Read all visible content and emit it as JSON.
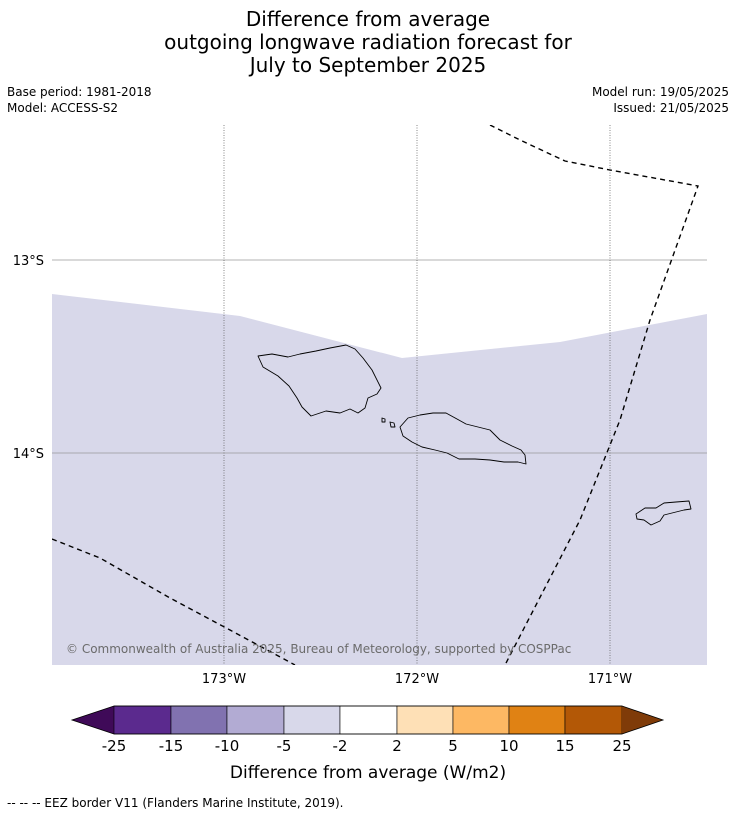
{
  "title": {
    "line1": "Difference from average",
    "line2": "outgoing longwave radiation forecast for",
    "line3": "July to September 2025"
  },
  "meta": {
    "base_period": "Base period: 1981-2018",
    "model": "Model: ACCESS-S2",
    "model_run": "Model run: 19/05/2025",
    "issued": "Issued: 21/05/2025"
  },
  "map": {
    "lon_ticks": [
      "173°W",
      "172°W",
      "171°W"
    ],
    "lat_ticks": [
      "13°S",
      "14°S"
    ],
    "copyright": "© Commonwealth of Australia 2025, Bureau of Meteorology, supported by COSPPac",
    "forecast_category": "-5 to -2",
    "colors": {
      "forecast_fill": "#d8d8ea",
      "land_outline": "#000000",
      "eez_line": "#000000",
      "gridline": "#9a9a9a"
    }
  },
  "colorbar": {
    "title": "Difference from average (W/m2)",
    "tick_labels": [
      "-25",
      "-15",
      "-10",
      "-5",
      "-2",
      "2",
      "5",
      "10",
      "15",
      "25"
    ],
    "colors": [
      "#3f0a58",
      "#5b2a8e",
      "#8172b0",
      "#b2abd3",
      "#d8d8ea",
      "#ffffff",
      "#fee0b6",
      "#fdb863",
      "#e08214",
      "#b35806",
      "#7f3b08"
    ]
  },
  "footnote": "--  --  -- EEZ border V11 (Flanders Marine Institute, 2019)."
}
